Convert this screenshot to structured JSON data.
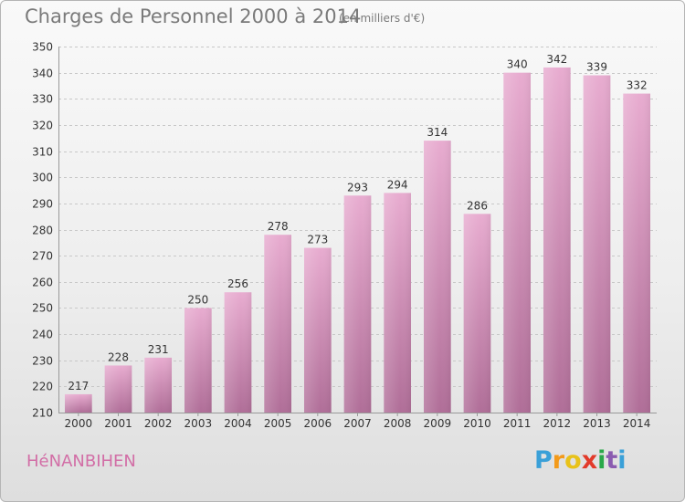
{
  "header": {
    "title": "Charges de Personnel 2000 à 2014",
    "subtitle": "(en milliers d'€)"
  },
  "footer": {
    "commune": "HéNANBIHEN",
    "logo_letters": [
      "P",
      "r",
      "o",
      "x",
      "i",
      "t",
      "i"
    ],
    "logo_colors": [
      "#3aa0d8",
      "#f39a1a",
      "#e8c21a",
      "#e23a2a",
      "#2aa84a",
      "#8a5bb0",
      "#3aa0d8"
    ]
  },
  "chart_data": {
    "type": "bar",
    "title": "Charges de Personnel 2000 à 2014",
    "subtitle": "(en milliers d'€)",
    "categories": [
      "2000",
      "2001",
      "2002",
      "2003",
      "2004",
      "2005",
      "2006",
      "2007",
      "2008",
      "2009",
      "2010",
      "2011",
      "2012",
      "2013",
      "2014"
    ],
    "values": [
      217,
      228,
      231,
      250,
      256,
      278,
      273,
      293,
      294,
      314,
      286,
      340,
      342,
      339,
      332
    ],
    "ylim": [
      210,
      350
    ],
    "yticks": [
      210,
      220,
      230,
      240,
      250,
      260,
      270,
      280,
      290,
      300,
      310,
      320,
      330,
      340,
      350
    ],
    "grid": true,
    "bar_color": "#d88bb8"
  }
}
